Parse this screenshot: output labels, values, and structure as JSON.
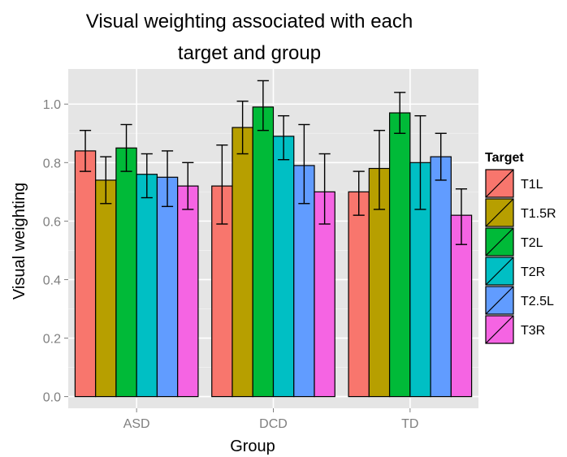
{
  "chart_data": {
    "type": "bar",
    "title_lines": [
      "Visual weighting associated with each",
      "target and group"
    ],
    "xlabel": "Group",
    "ylabel": "Visual weighting",
    "categories": [
      "ASD",
      "DCD",
      "TD"
    ],
    "ylim": [
      -0.04,
      1.12
    ],
    "yticks": [
      0.0,
      0.2,
      0.4,
      0.6,
      0.8,
      1.0
    ],
    "ytick_labels": [
      "0.0",
      "0.2",
      "0.4",
      "0.6",
      "0.8",
      "1.0"
    ],
    "grid": true,
    "legend_title": "Target",
    "legend_position": "right",
    "series": [
      {
        "name": "T1L",
        "color": "#F8766D",
        "values": [
          0.84,
          0.72,
          0.7
        ],
        "err_low": [
          0.77,
          0.59,
          0.62
        ],
        "err_high": [
          0.91,
          0.86,
          0.77
        ]
      },
      {
        "name": "T1.5R",
        "color": "#B79F00",
        "values": [
          0.74,
          0.92,
          0.78
        ],
        "err_low": [
          0.66,
          0.83,
          0.64
        ],
        "err_high": [
          0.82,
          1.01,
          0.91
        ]
      },
      {
        "name": "T2L",
        "color": "#00BA38",
        "values": [
          0.85,
          0.99,
          0.97
        ],
        "err_low": [
          0.77,
          0.91,
          0.9
        ],
        "err_high": [
          0.93,
          1.08,
          1.04
        ]
      },
      {
        "name": "T2R",
        "color": "#00BFC4",
        "values": [
          0.76,
          0.89,
          0.8
        ],
        "err_low": [
          0.68,
          0.81,
          0.64
        ],
        "err_high": [
          0.83,
          0.96,
          0.96
        ]
      },
      {
        "name": "T2.5L",
        "color": "#619CFF",
        "values": [
          0.75,
          0.79,
          0.82
        ],
        "err_low": [
          0.65,
          0.66,
          0.74
        ],
        "err_high": [
          0.84,
          0.93,
          0.9
        ]
      },
      {
        "name": "T3R",
        "color": "#F564E3",
        "values": [
          0.72,
          0.7,
          0.62
        ],
        "err_low": [
          0.64,
          0.59,
          0.52
        ],
        "err_high": [
          0.8,
          0.83,
          0.71
        ]
      }
    ]
  }
}
